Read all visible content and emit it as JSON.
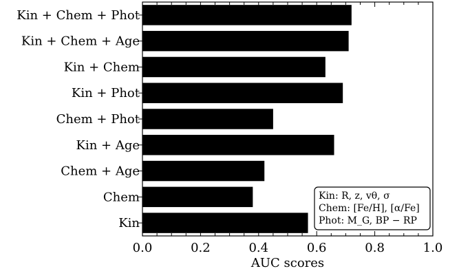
{
  "chart_data": {
    "type": "bar",
    "orientation": "horizontal",
    "xlabel": "AUC scores",
    "ylabel": "",
    "title": "",
    "xlim": [
      0.0,
      1.0
    ],
    "x_ticks": [
      "0.0",
      "0.2",
      "0.4",
      "0.6",
      "0.8",
      "1.0"
    ],
    "categories": [
      "Kin + Chem + Phot",
      "Kin + Chem + Age",
      "Kin + Chem",
      "Kin + Phot",
      "Chem + Phot",
      "Kin + Age",
      "Chem + Age",
      "Chem",
      "Kin"
    ],
    "values": [
      0.72,
      0.71,
      0.63,
      0.69,
      0.45,
      0.66,
      0.42,
      0.38,
      0.57
    ],
    "bar_color": "#000000",
    "grid": false,
    "legend_placement": "bottom-right",
    "legend": {
      "kin": "Kin: R, z, vθ, σ",
      "chem": "Chem: [Fe/H], [α/Fe]",
      "phot": "Phot: M_G, BP − RP"
    }
  }
}
